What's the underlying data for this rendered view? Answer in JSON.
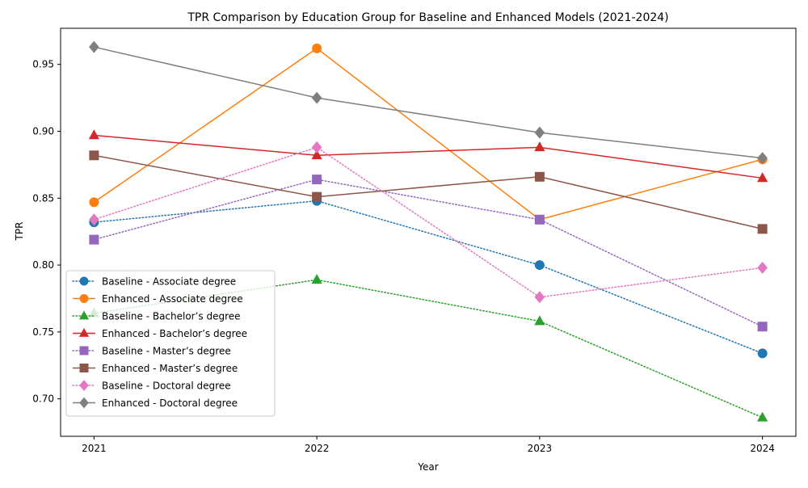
{
  "chart_data": {
    "type": "line",
    "title": "TPR Comparison by Education Group for Baseline and Enhanced Models (2021-2024)",
    "xlabel": "Year",
    "ylabel": "TPR",
    "categories": [
      "2021",
      "2022",
      "2023",
      "2024"
    ],
    "ylim": [
      0.672,
      0.977
    ],
    "yticks": [
      "0.70",
      "0.75",
      "0.80",
      "0.85",
      "0.90",
      "0.95"
    ],
    "grid": false,
    "legend_position": "lower-left",
    "series": [
      {
        "name": "Baseline - Associate degree",
        "values": [
          0.832,
          0.848,
          0.8,
          0.734
        ],
        "color": "#1f77b4",
        "linestyle": "dotted",
        "marker": "circle"
      },
      {
        "name": "Enhanced - Associate degree",
        "values": [
          0.847,
          0.962,
          0.834,
          0.879
        ],
        "color": "#ff7f0e",
        "linestyle": "solid",
        "marker": "circle"
      },
      {
        "name": "Baseline - Bachelor’s degree",
        "values": [
          0.764,
          0.789,
          0.758,
          0.686
        ],
        "color": "#2ca02c",
        "linestyle": "dotted",
        "marker": "triangle"
      },
      {
        "name": "Enhanced - Bachelor’s degree",
        "values": [
          0.897,
          0.882,
          0.888,
          0.865
        ],
        "color": "#d62728",
        "linestyle": "solid",
        "marker": "triangle"
      },
      {
        "name": "Baseline - Master’s degree",
        "values": [
          0.819,
          0.864,
          0.834,
          0.754
        ],
        "color": "#9467bd",
        "linestyle": "dotted",
        "marker": "square"
      },
      {
        "name": "Enhanced - Master’s degree",
        "values": [
          0.882,
          0.851,
          0.866,
          0.827
        ],
        "color": "#8c564b",
        "linestyle": "solid",
        "marker": "square"
      },
      {
        "name": "Baseline - Doctoral degree",
        "values": [
          0.834,
          0.888,
          0.776,
          0.798
        ],
        "color": "#e377c2",
        "linestyle": "dotted",
        "marker": "diamond"
      },
      {
        "name": "Enhanced - Doctoral degree",
        "values": [
          0.963,
          0.925,
          0.899,
          0.88
        ],
        "color": "#7f7f7f",
        "linestyle": "solid",
        "marker": "diamond"
      }
    ]
  }
}
